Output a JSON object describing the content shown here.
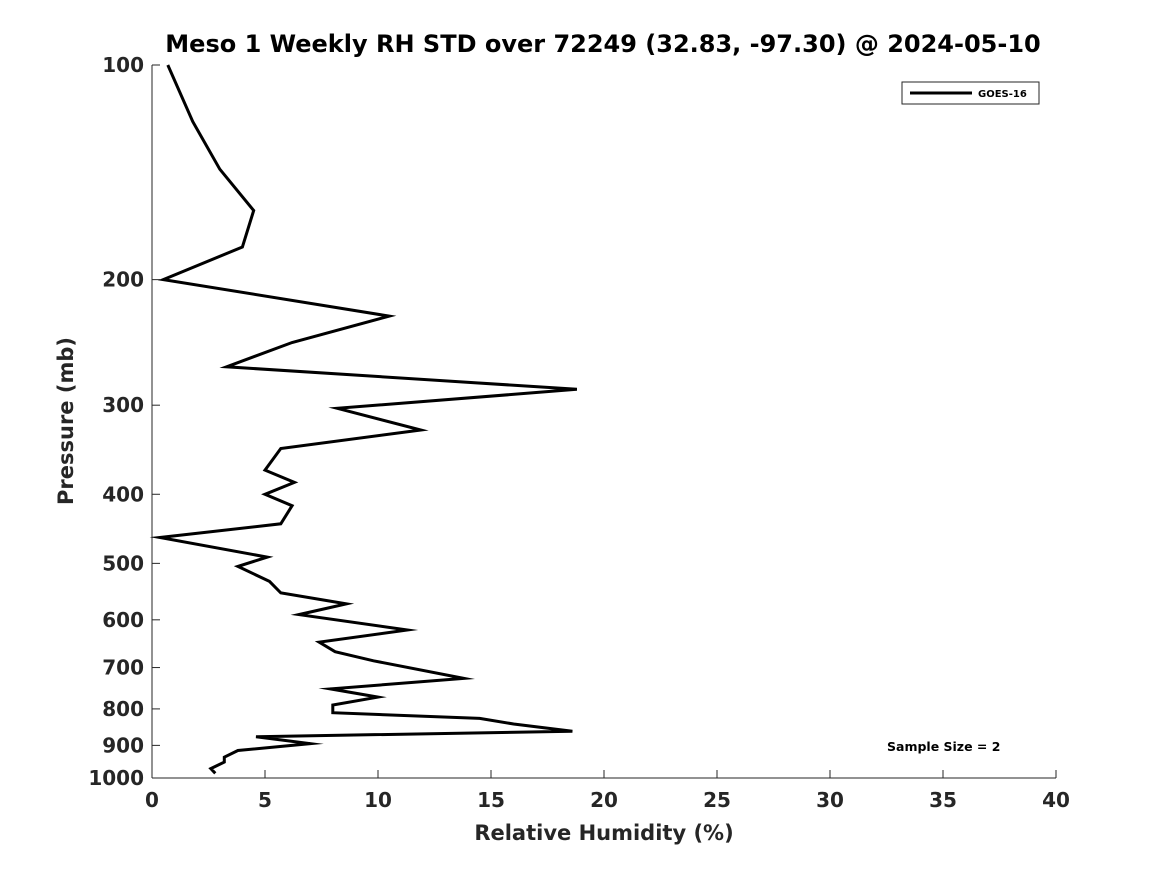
{
  "chart_data": {
    "type": "line",
    "title": "Meso 1 Weekly RH STD over 72249 (32.83, -97.30) @ 2024-05-10",
    "xlabel": "Relative Humidity (%)",
    "ylabel": "Pressure (mb)",
    "xlim": [
      0,
      40
    ],
    "ylim": [
      100,
      1000
    ],
    "y_scale": "log",
    "y_reversed": true,
    "x_ticks": [
      0,
      5,
      10,
      15,
      20,
      25,
      30,
      35,
      40
    ],
    "x_tick_labels": [
      "0",
      "5",
      "10",
      "15",
      "20",
      "25",
      "30",
      "35",
      "40"
    ],
    "y_ticks": [
      100,
      200,
      300,
      400,
      500,
      600,
      700,
      800,
      900,
      1000
    ],
    "y_tick_labels": [
      "100",
      "200",
      "300",
      "400",
      "500",
      "600",
      "700",
      "800",
      "900",
      "1000"
    ],
    "grid": false,
    "legend_position": "top-right",
    "annotation": "Sample Size = 2",
    "series": [
      {
        "name": "GOES-16",
        "color": "#000000",
        "x": [
          0.7,
          1.8,
          3.0,
          4.5,
          4.0,
          0.5,
          10.5,
          6.2,
          3.3,
          18.8,
          8.2,
          11.9,
          5.7,
          5.0,
          6.3,
          5.0,
          6.2,
          5.7,
          0.35,
          5.1,
          3.8,
          5.2,
          5.7,
          8.6,
          6.5,
          11.3,
          7.4,
          8.1,
          9.8,
          13.8,
          7.9,
          10.0,
          8.0,
          8.0,
          14.5,
          16.0,
          18.6,
          4.6,
          7.0,
          3.8,
          3.2,
          3.2,
          2.6,
          2.8
        ],
        "y": [
          100,
          120,
          140,
          160,
          180,
          200,
          225,
          245,
          265,
          285,
          303,
          325,
          345,
          370,
          385,
          400,
          415,
          440,
          460,
          490,
          505,
          530,
          550,
          570,
          590,
          620,
          645,
          665,
          685,
          725,
          750,
          770,
          790,
          810,
          825,
          840,
          860,
          875,
          895,
          915,
          935,
          950,
          970,
          985
        ]
      }
    ]
  }
}
